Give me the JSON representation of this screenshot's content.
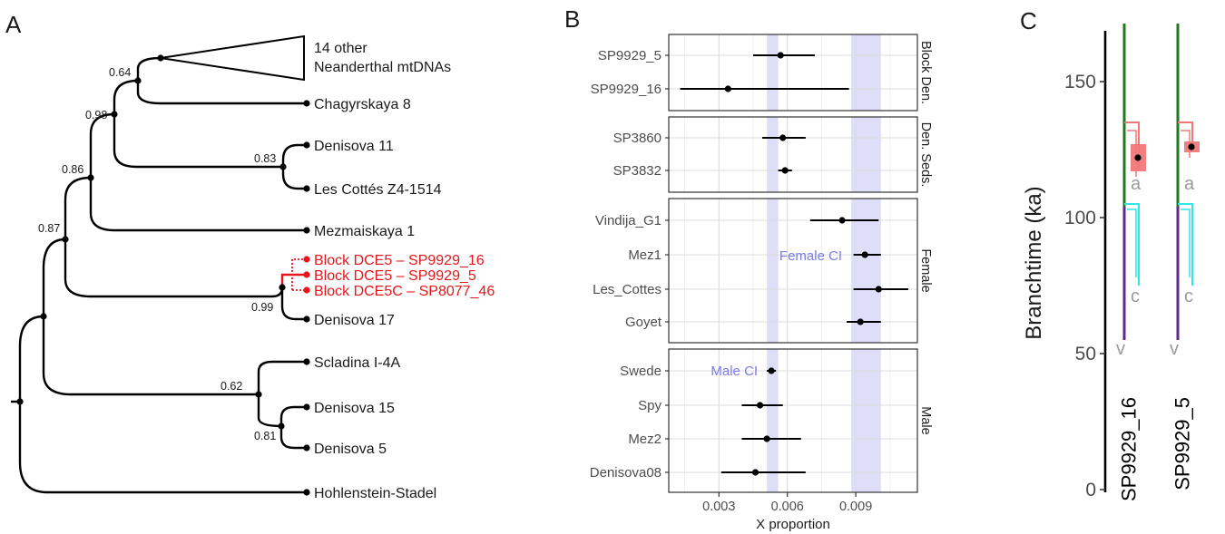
{
  "panel_letters": {
    "a": "A",
    "b": "B",
    "c": "C"
  },
  "tree": {
    "clade_line1": "14 other",
    "clade_line2": "Neanderthal mtDNAs",
    "taxa": {
      "chagyrskaya": "Chagyrskaya 8",
      "denisova11": "Denisova 11",
      "lescottes": "Les Cottés Z4-1514",
      "mezmaiskaya": "Mezmaiskaya 1",
      "block16": "Block DCE5 – SP9929_16",
      "block5": "Block DCE5 – SP9929_5",
      "block5c": "Block DCE5C – SP8077_46",
      "denisova17": "Denisova 17",
      "scladina": "Scladina I-4A",
      "denisova15": "Denisova 15",
      "denisova5": "Denisova 5",
      "hohlenstein": "Hohlenstein-Stadel"
    },
    "support": {
      "n064": "0.64",
      "n098": "0.98",
      "n083": "0.83",
      "n086": "0.86",
      "n087": "0.87",
      "n099": "0.99",
      "n062": "0.62",
      "n081": "0.81"
    },
    "colors": {
      "black": "#000000",
      "highlight": "#e8161b"
    }
  },
  "chart_data": [
    {
      "type": "scatter",
      "variant": "point-range, faceted",
      "xlabel": "X proportion",
      "x_ticks": [
        "0.003",
        "0.006",
        "0.009"
      ],
      "xlim": [
        0.0008,
        0.0117
      ],
      "shaded_bands": [
        {
          "label": "Male CI",
          "from": 0.0051,
          "to": 0.0056
        },
        {
          "label": "Female CI",
          "from": 0.0088,
          "to": 0.0101
        }
      ],
      "band_color": "#c8c8f5",
      "facets": [
        {
          "strip": "Block Den.",
          "rows": [
            {
              "label": "SP9929_5",
              "est": 0.0057,
              "lo": 0.0045,
              "hi": 0.0072
            },
            {
              "label": "SP9929_16",
              "est": 0.0034,
              "lo": 0.0013,
              "hi": 0.0087
            }
          ]
        },
        {
          "strip": "Den. Seds.",
          "rows": [
            {
              "label": "SP3860",
              "est": 0.0058,
              "lo": 0.0049,
              "hi": 0.0068
            },
            {
              "label": "SP3832",
              "est": 0.0059,
              "lo": 0.0056,
              "hi": 0.0062
            }
          ]
        },
        {
          "strip": "Female",
          "rows": [
            {
              "label": "Vindija_G1",
              "est": 0.0084,
              "lo": 0.007,
              "hi": 0.01
            },
            {
              "label": "Mez1",
              "est": 0.0094,
              "lo": 0.0089,
              "hi": 0.0101
            },
            {
              "label": "Les_Cottes",
              "est": 0.01,
              "lo": 0.0089,
              "hi": 0.0113
            },
            {
              "label": "Goyet",
              "est": 0.0092,
              "lo": 0.0086,
              "hi": 0.0101
            }
          ]
        },
        {
          "strip": "Male",
          "rows": [
            {
              "label": "Swede",
              "est": 0.0053,
              "lo": 0.0051,
              "hi": 0.0055
            },
            {
              "label": "Spy",
              "est": 0.0048,
              "lo": 0.004,
              "hi": 0.0058
            },
            {
              "label": "Mez2",
              "est": 0.0051,
              "lo": 0.004,
              "hi": 0.0066
            },
            {
              "label": "Denisova08",
              "est": 0.0046,
              "lo": 0.0031,
              "hi": 0.0068
            }
          ]
        }
      ]
    },
    {
      "type": "other",
      "variant": "branch-time diagram",
      "ylabel": "Branchtime (ka)",
      "ylim": [
        0,
        170
      ],
      "y_ticks": [
        0,
        50,
        100,
        150
      ],
      "samples": [
        {
          "label": "SP9929_16",
          "estimate": 122,
          "box": [
            117,
            127
          ],
          "red_lines": [
            135,
            132
          ],
          "cyan_lines": [
            105,
            103
          ]
        },
        {
          "label": "SP9929_5",
          "estimate": 126,
          "box": [
            124,
            128
          ],
          "red_lines": [
            135,
            132
          ],
          "cyan_lines": [
            105,
            103
          ]
        }
      ],
      "markers": {
        "a": "a",
        "c": "c",
        "v": "v"
      },
      "colors": {
        "green": "#1f7a1f",
        "purple": "#5e2a8c",
        "red": "#f07878",
        "cyan": "#2ee6e6",
        "marker": "#9a9a9a"
      }
    }
  ]
}
